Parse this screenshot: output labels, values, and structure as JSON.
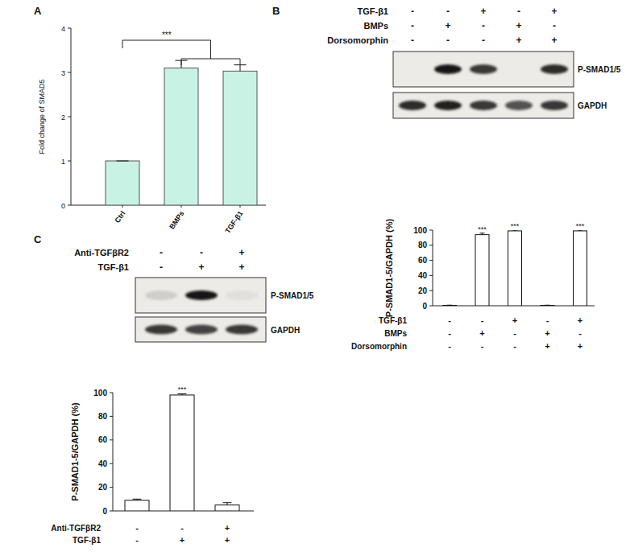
{
  "panel_labels": [
    "A",
    "B",
    "C"
  ],
  "chart_data": [
    {
      "type": "bar",
      "y_label": "Fold change of SMAD5",
      "categories": [
        "Ctrl",
        "BMPs",
        "TGF-β1"
      ],
      "values": [
        1,
        3.1,
        3.03
      ],
      "errors": [
        0,
        0.17,
        0.14
      ],
      "color": "#c8f3e4",
      "ylim": [
        0,
        4
      ],
      "yticks": [
        0,
        1,
        2,
        3,
        4
      ],
      "comparisons": [
        {
          "text": "***",
          "from": 0,
          "to": [
            1,
            2
          ]
        }
      ]
    },
    {
      "type": "bar",
      "y_label": "P-SMAD1-5/GAPDH (%)",
      "categories": [
        null,
        null,
        null,
        null,
        null
      ],
      "values": [
        0.5,
        94,
        99,
        0.5,
        99
      ],
      "errors": [
        0.3,
        2,
        1,
        0.3,
        1
      ],
      "color": "#ffffff",
      "ylim": [
        0,
        100
      ],
      "yticks": [
        0,
        20,
        40,
        60,
        80,
        100
      ],
      "significance": [
        null,
        "***",
        "***",
        null,
        "***"
      ],
      "conditions": [
        {
          "name": "TGF-β1",
          "signs": [
            "-",
            "-",
            "+",
            "-",
            "+"
          ]
        },
        {
          "name": "BMPs",
          "signs": [
            "-",
            "+",
            "-",
            "+",
            "-"
          ]
        },
        {
          "name": "Dorsomorphin",
          "signs": [
            "-",
            "-",
            "-",
            "+",
            "+"
          ]
        }
      ]
    },
    {
      "type": "bar",
      "y_label": "P-SMAD1-5/GAPDH (%)",
      "categories": [
        null,
        null,
        null
      ],
      "values": [
        9,
        98,
        5
      ],
      "errors": [
        1,
        1,
        2
      ],
      "color": "#ffffff",
      "ylim": [
        0,
        100
      ],
      "yticks": [
        0,
        20,
        40,
        60,
        80,
        100
      ],
      "significance": [
        null,
        "***",
        null
      ],
      "conditions": [
        {
          "name": "Anti-TGFβR2",
          "signs": [
            "-",
            "-",
            "+"
          ]
        },
        {
          "name": "TGF-β1",
          "signs": [
            "-",
            "+",
            "+"
          ]
        }
      ]
    }
  ],
  "blots": [
    {
      "conditions": [
        {
          "name": "TGF-β1",
          "signs": [
            "-",
            "-",
            "+",
            "-",
            "+"
          ]
        },
        {
          "name": "BMPs",
          "signs": [
            "-",
            "+",
            "-",
            "+",
            "-"
          ]
        },
        {
          "name": "Dorsomorphin",
          "signs": [
            "-",
            "-",
            "-",
            "+",
            "+"
          ]
        }
      ],
      "bands": [
        {
          "name": "P-SMAD1/5",
          "intensity": [
            0,
            1,
            0.85,
            0,
            0.9
          ]
        },
        {
          "name": "GAPDH",
          "intensity": [
            0.9,
            0.95,
            0.85,
            0.7,
            0.85
          ]
        }
      ]
    },
    {
      "conditions": [
        {
          "name": "Anti-TGFβR2",
          "signs": [
            "-",
            "-",
            "+"
          ]
        },
        {
          "name": "TGF-β1",
          "signs": [
            "-",
            "+",
            "+"
          ]
        }
      ],
      "bands": [
        {
          "name": "P-SMAD1/5",
          "intensity": [
            0.12,
            1,
            0.05
          ]
        },
        {
          "name": "GAPDH",
          "intensity": [
            0.85,
            0.8,
            0.85
          ]
        }
      ]
    }
  ]
}
